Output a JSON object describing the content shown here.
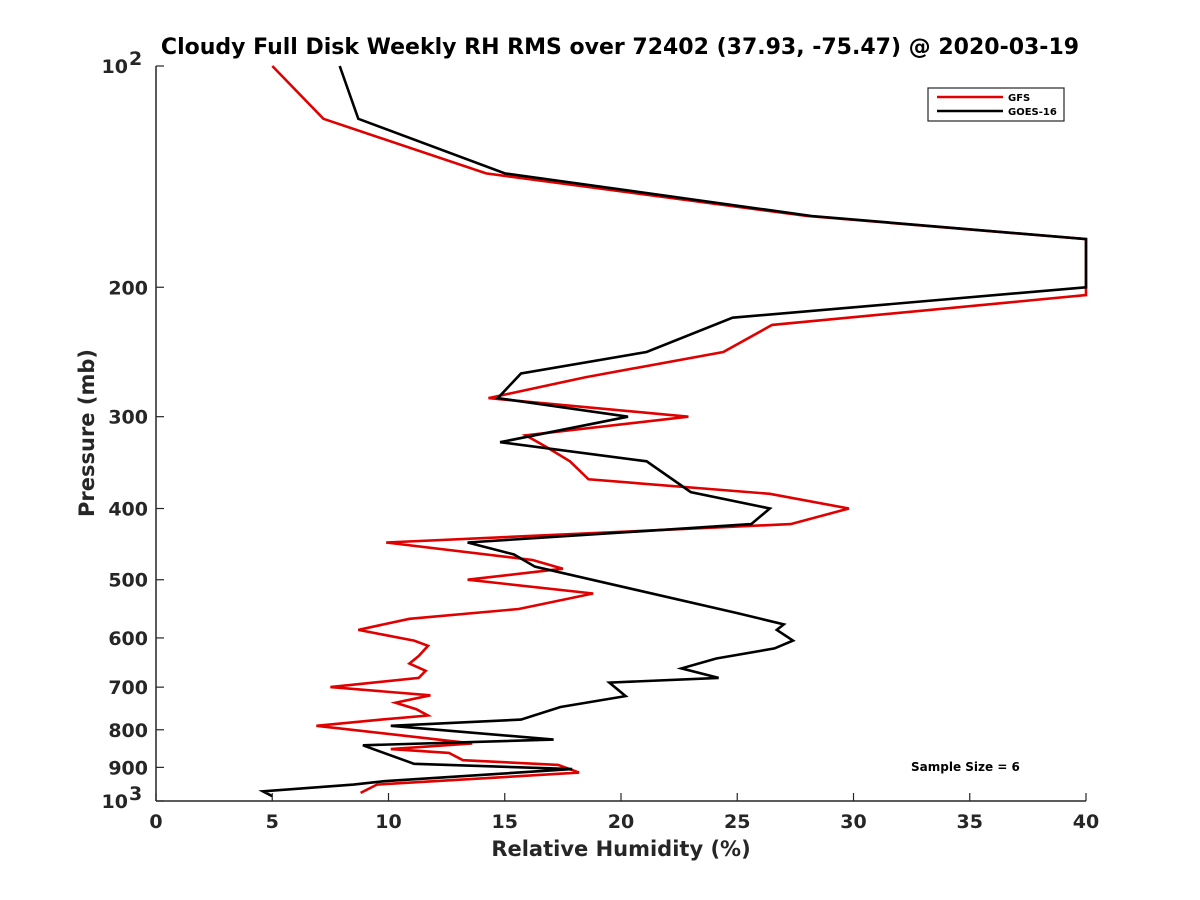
{
  "chart_data": {
    "type": "line",
    "title": "Cloudy Full Disk Weekly RH RMS over 72402 (37.93, -75.47) @ 2020-03-19",
    "xlabel": "Relative Humidity (%)",
    "ylabel": "Pressure (mb)",
    "xlim": [
      0,
      40
    ],
    "ylim": [
      100,
      1000
    ],
    "yscale": "log",
    "y_reversed": true,
    "x_ticks": [
      0,
      5,
      10,
      15,
      20,
      25,
      30,
      35,
      40
    ],
    "y_ticks": [
      {
        "value": 100,
        "label": "10",
        "sup": "2"
      },
      {
        "value": 200,
        "label": "200",
        "sup": ""
      },
      {
        "value": 300,
        "label": "300",
        "sup": ""
      },
      {
        "value": 400,
        "label": "400",
        "sup": ""
      },
      {
        "value": 500,
        "label": "500",
        "sup": ""
      },
      {
        "value": 600,
        "label": "600",
        "sup": ""
      },
      {
        "value": 700,
        "label": "700",
        "sup": ""
      },
      {
        "value": 800,
        "label": "800",
        "sup": ""
      },
      {
        "value": 900,
        "label": "900",
        "sup": ""
      },
      {
        "value": 1000,
        "label": "10",
        "sup": "3"
      }
    ],
    "grid": false,
    "legend_position": "top-right",
    "annotation": "Sample Size = 6",
    "series": [
      {
        "name": "GFS",
        "color": "#e00000",
        "points": [
          [
            5.0,
            100
          ],
          [
            7.2,
            118
          ],
          [
            14.2,
            140
          ],
          [
            28.0,
            160
          ],
          [
            40.0,
            172
          ],
          [
            40.0,
            205
          ],
          [
            26.5,
            225
          ],
          [
            24.4,
            245
          ],
          [
            18.5,
            265
          ],
          [
            14.3,
            283
          ],
          [
            22.9,
            300
          ],
          [
            15.9,
            318
          ],
          [
            16.8,
            330
          ],
          [
            17.8,
            345
          ],
          [
            18.6,
            365
          ],
          [
            26.4,
            382
          ],
          [
            29.8,
            400
          ],
          [
            27.3,
            420
          ],
          [
            9.9,
            445
          ],
          [
            16.2,
            470
          ],
          [
            17.5,
            483
          ],
          [
            13.4,
            500
          ],
          [
            18.8,
            522
          ],
          [
            15.6,
            548
          ],
          [
            10.9,
            565
          ],
          [
            8.7,
            585
          ],
          [
            11.1,
            605
          ],
          [
            11.7,
            615
          ],
          [
            11.3,
            635
          ],
          [
            10.9,
            650
          ],
          [
            11.6,
            665
          ],
          [
            11.3,
            680
          ],
          [
            7.5,
            700
          ],
          [
            11.8,
            718
          ],
          [
            10.3,
            735
          ],
          [
            11.2,
            750
          ],
          [
            11.7,
            765
          ],
          [
            9.7,
            775
          ],
          [
            6.9,
            790
          ],
          [
            13.6,
            835
          ],
          [
            10.1,
            850
          ],
          [
            12.6,
            860
          ],
          [
            13.2,
            880
          ],
          [
            17.3,
            893
          ],
          [
            18.2,
            915
          ],
          [
            9.5,
            950
          ],
          [
            8.8,
            975
          ]
        ]
      },
      {
        "name": "GOES-16",
        "color": "#000000",
        "points": [
          [
            7.9,
            100
          ],
          [
            8.7,
            118
          ],
          [
            15.0,
            140
          ],
          [
            28.2,
            160
          ],
          [
            40.0,
            172
          ],
          [
            40.0,
            200
          ],
          [
            24.8,
            220
          ],
          [
            21.1,
            245
          ],
          [
            15.7,
            262
          ],
          [
            14.7,
            283
          ],
          [
            20.3,
            300
          ],
          [
            14.8,
            325
          ],
          [
            21.1,
            345
          ],
          [
            23.0,
            380
          ],
          [
            26.4,
            400
          ],
          [
            25.6,
            420
          ],
          [
            13.4,
            445
          ],
          [
            15.4,
            462
          ],
          [
            16.3,
            480
          ],
          [
            25.0,
            555
          ],
          [
            27.0,
            575
          ],
          [
            26.7,
            585
          ],
          [
            27.4,
            605
          ],
          [
            26.6,
            620
          ],
          [
            24.1,
            640
          ],
          [
            22.6,
            660
          ],
          [
            24.2,
            680
          ],
          [
            19.5,
            690
          ],
          [
            20.2,
            720
          ],
          [
            17.4,
            745
          ],
          [
            15.7,
            775
          ],
          [
            10.1,
            790
          ],
          [
            17.1,
            825
          ],
          [
            8.9,
            840
          ],
          [
            11.1,
            890
          ],
          [
            17.9,
            905
          ],
          [
            9.8,
            940
          ],
          [
            8.5,
            950
          ],
          [
            4.6,
            970
          ],
          [
            5.0,
            985
          ]
        ]
      }
    ]
  }
}
